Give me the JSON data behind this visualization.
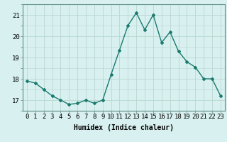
{
  "x": [
    0,
    1,
    2,
    3,
    4,
    5,
    6,
    7,
    8,
    9,
    10,
    11,
    12,
    13,
    14,
    15,
    16,
    17,
    18,
    19,
    20,
    21,
    22,
    23
  ],
  "y": [
    17.9,
    17.8,
    17.5,
    17.2,
    17.0,
    16.8,
    16.85,
    17.0,
    16.85,
    17.0,
    18.2,
    19.35,
    20.5,
    21.1,
    20.3,
    21.0,
    19.7,
    20.2,
    19.3,
    18.8,
    18.55,
    18.0,
    18.0,
    17.2
  ],
  "title": "",
  "xlabel": "Humidex (Indice chaleur)",
  "ylabel": "",
  "line_color": "#1a7a6e",
  "marker": "D",
  "marker_size": 2.0,
  "linewidth": 1.0,
  "background_color": "#d8f0f0",
  "grid_color": "#b8d8d0",
  "ylim": [
    16.5,
    21.5
  ],
  "xlim": [
    -0.5,
    23.5
  ],
  "yticks": [
    17,
    18,
    19,
    20,
    21
  ],
  "xtick_labels": [
    "0",
    "1",
    "2",
    "3",
    "4",
    "5",
    "6",
    "7",
    "8",
    "9",
    "10",
    "11",
    "12",
    "13",
    "14",
    "15",
    "16",
    "17",
    "18",
    "19",
    "20",
    "21",
    "22",
    "23"
  ],
  "label_fontsize": 7.0,
  "tick_fontsize": 6.5
}
